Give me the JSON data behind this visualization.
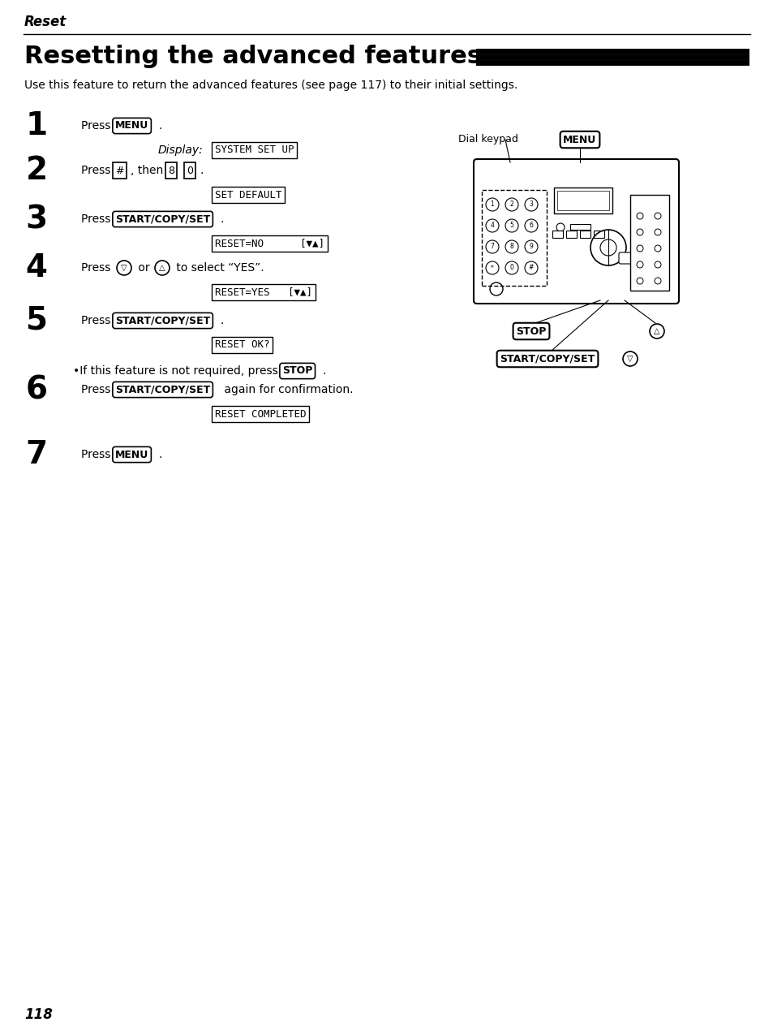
{
  "page_number": "118",
  "header_italic": "Reset",
  "title": "Resetting the advanced features",
  "intro": "Use this feature to return the advanced features (see page 117) to their initial settings.",
  "display_texts": [
    "SYSTEM SET UP",
    "SET DEFAULT",
    "RESET=NO      [▼▲]",
    "RESET=YES   [▼▲]",
    "RESET OK?",
    "RESET COMPLETED"
  ],
  "bullet_note": "If this feature is not required, press ",
  "bullet_button": "STOP",
  "bullet_suffix": ".",
  "bg_color": "#ffffff",
  "text_color": "#000000"
}
